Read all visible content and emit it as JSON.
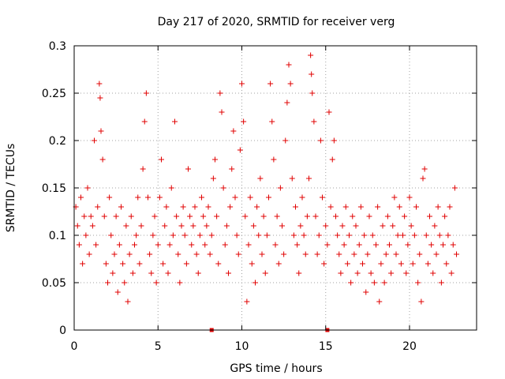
{
  "chart_data": {
    "type": "scatter",
    "title": "Day 217 of 2020, SRMTID for receiver verg",
    "xlabel": "GPS time / hours",
    "ylabel": "SRMTID / TECUs",
    "xlim": [
      0,
      24
    ],
    "ylim": [
      0,
      0.3
    ],
    "x_ticks": [
      0,
      5,
      10,
      15,
      20
    ],
    "x_tick_labels": [
      "0",
      "5",
      "10",
      "15",
      "20"
    ],
    "y_ticks": [
      0,
      0.05,
      0.1,
      0.15,
      0.2,
      0.25,
      0.3
    ],
    "y_tick_labels": [
      "0",
      "0.05",
      "0.1",
      "0.15",
      "0.2",
      "0.25",
      "0.3"
    ],
    "grid": true,
    "marker": "plus",
    "color": "#e00000",
    "outage_markers_x": [
      8.2,
      15.1
    ],
    "series": [
      {
        "name": "SRMTID",
        "points": [
          [
            0.1,
            0.13
          ],
          [
            0.2,
            0.11
          ],
          [
            0.3,
            0.09
          ],
          [
            0.4,
            0.14
          ],
          [
            0.5,
            0.07
          ],
          [
            0.6,
            0.12
          ],
          [
            0.7,
            0.1
          ],
          [
            0.8,
            0.15
          ],
          [
            0.9,
            0.08
          ],
          [
            1.0,
            0.12
          ],
          [
            1.1,
            0.11
          ],
          [
            1.2,
            0.2
          ],
          [
            1.3,
            0.09
          ],
          [
            1.4,
            0.13
          ],
          [
            1.5,
            0.26
          ],
          [
            1.55,
            0.245
          ],
          [
            1.6,
            0.21
          ],
          [
            1.7,
            0.18
          ],
          [
            1.8,
            0.12
          ],
          [
            1.9,
            0.07
          ],
          [
            2.0,
            0.05
          ],
          [
            2.1,
            0.14
          ],
          [
            2.2,
            0.1
          ],
          [
            2.3,
            0.06
          ],
          [
            2.4,
            0.08
          ],
          [
            2.5,
            0.12
          ],
          [
            2.6,
            0.04
          ],
          [
            2.7,
            0.09
          ],
          [
            2.8,
            0.13
          ],
          [
            2.9,
            0.07
          ],
          [
            3.0,
            0.05
          ],
          [
            3.1,
            0.11
          ],
          [
            3.2,
            0.03
          ],
          [
            3.3,
            0.08
          ],
          [
            3.4,
            0.12
          ],
          [
            3.5,
            0.06
          ],
          [
            3.6,
            0.09
          ],
          [
            3.7,
            0.1
          ],
          [
            3.8,
            0.14
          ],
          [
            3.9,
            0.07
          ],
          [
            4.0,
            0.11
          ],
          [
            4.1,
            0.17
          ],
          [
            4.2,
            0.22
          ],
          [
            4.3,
            0.25
          ],
          [
            4.4,
            0.14
          ],
          [
            4.5,
            0.08
          ],
          [
            4.6,
            0.06
          ],
          [
            4.7,
            0.1
          ],
          [
            4.8,
            0.12
          ],
          [
            4.9,
            0.05
          ],
          [
            5.0,
            0.09
          ],
          [
            5.1,
            0.14
          ],
          [
            5.2,
            0.18
          ],
          [
            5.3,
            0.07
          ],
          [
            5.4,
            0.11
          ],
          [
            5.5,
            0.13
          ],
          [
            5.6,
            0.06
          ],
          [
            5.7,
            0.09
          ],
          [
            5.8,
            0.15
          ],
          [
            5.9,
            0.1
          ],
          [
            6.0,
            0.22
          ],
          [
            6.1,
            0.12
          ],
          [
            6.2,
            0.08
          ],
          [
            6.3,
            0.05
          ],
          [
            6.4,
            0.11
          ],
          [
            6.5,
            0.13
          ],
          [
            6.6,
            0.1
          ],
          [
            6.7,
            0.07
          ],
          [
            6.8,
            0.17
          ],
          [
            6.9,
            0.12
          ],
          [
            7.0,
            0.09
          ],
          [
            7.1,
            0.11
          ],
          [
            7.2,
            0.13
          ],
          [
            7.3,
            0.08
          ],
          [
            7.4,
            0.06
          ],
          [
            7.5,
            0.1
          ],
          [
            7.6,
            0.14
          ],
          [
            7.7,
            0.12
          ],
          [
            7.8,
            0.09
          ],
          [
            7.9,
            0.11
          ],
          [
            8.0,
            0.13
          ],
          [
            8.1,
            0.08
          ],
          [
            8.2,
            0.1
          ],
          [
            8.3,
            0.16
          ],
          [
            8.4,
            0.18
          ],
          [
            8.5,
            0.12
          ],
          [
            8.6,
            0.07
          ],
          [
            8.7,
            0.25
          ],
          [
            8.8,
            0.23
          ],
          [
            8.9,
            0.15
          ],
          [
            9.0,
            0.09
          ],
          [
            9.1,
            0.11
          ],
          [
            9.2,
            0.06
          ],
          [
            9.3,
            0.13
          ],
          [
            9.4,
            0.17
          ],
          [
            9.5,
            0.21
          ],
          [
            9.6,
            0.14
          ],
          [
            9.7,
            0.1
          ],
          [
            9.8,
            0.08
          ],
          [
            9.9,
            0.19
          ],
          [
            10.0,
            0.26
          ],
          [
            10.1,
            0.22
          ],
          [
            10.2,
            0.12
          ],
          [
            10.3,
            0.03
          ],
          [
            10.4,
            0.09
          ],
          [
            10.5,
            0.14
          ],
          [
            10.6,
            0.07
          ],
          [
            10.7,
            0.11
          ],
          [
            10.8,
            0.05
          ],
          [
            10.9,
            0.13
          ],
          [
            11.0,
            0.1
          ],
          [
            11.1,
            0.16
          ],
          [
            11.2,
            0.08
          ],
          [
            11.3,
            0.12
          ],
          [
            11.4,
            0.06
          ],
          [
            11.5,
            0.1
          ],
          [
            11.6,
            0.14
          ],
          [
            11.7,
            0.26
          ],
          [
            11.8,
            0.22
          ],
          [
            11.9,
            0.18
          ],
          [
            12.0,
            0.09
          ],
          [
            12.1,
            0.12
          ],
          [
            12.2,
            0.07
          ],
          [
            12.3,
            0.15
          ],
          [
            12.4,
            0.11
          ],
          [
            12.5,
            0.08
          ],
          [
            12.6,
            0.2
          ],
          [
            12.7,
            0.24
          ],
          [
            12.8,
            0.28
          ],
          [
            12.9,
            0.26
          ],
          [
            13.0,
            0.16
          ],
          [
            13.1,
            0.1
          ],
          [
            13.2,
            0.13
          ],
          [
            13.3,
            0.09
          ],
          [
            13.4,
            0.06
          ],
          [
            13.5,
            0.11
          ],
          [
            13.6,
            0.14
          ],
          [
            13.7,
            0.1
          ],
          [
            13.8,
            0.08
          ],
          [
            13.9,
            0.12
          ],
          [
            14.0,
            0.16
          ],
          [
            14.1,
            0.29
          ],
          [
            14.15,
            0.27
          ],
          [
            14.2,
            0.25
          ],
          [
            14.3,
            0.22
          ],
          [
            14.4,
            0.12
          ],
          [
            14.5,
            0.08
          ],
          [
            14.6,
            0.1
          ],
          [
            14.7,
            0.2
          ],
          [
            14.8,
            0.14
          ],
          [
            14.9,
            0.07
          ],
          [
            15.0,
            0.11
          ],
          [
            15.1,
            0.09
          ],
          [
            15.2,
            0.23
          ],
          [
            15.3,
            0.13
          ],
          [
            15.4,
            0.18
          ],
          [
            15.5,
            0.2
          ],
          [
            15.6,
            0.12
          ],
          [
            15.7,
            0.1
          ],
          [
            15.8,
            0.08
          ],
          [
            15.9,
            0.06
          ],
          [
            16.0,
            0.11
          ],
          [
            16.1,
            0.09
          ],
          [
            16.2,
            0.13
          ],
          [
            16.3,
            0.07
          ],
          [
            16.4,
            0.1
          ],
          [
            16.5,
            0.05
          ],
          [
            16.6,
            0.12
          ],
          [
            16.7,
            0.08
          ],
          [
            16.8,
            0.11
          ],
          [
            16.9,
            0.06
          ],
          [
            17.0,
            0.09
          ],
          [
            17.1,
            0.13
          ],
          [
            17.2,
            0.07
          ],
          [
            17.3,
            0.1
          ],
          [
            17.4,
            0.04
          ],
          [
            17.5,
            0.08
          ],
          [
            17.6,
            0.12
          ],
          [
            17.7,
            0.06
          ],
          [
            17.8,
            0.1
          ],
          [
            17.9,
            0.05
          ],
          [
            18.0,
            0.09
          ],
          [
            18.1,
            0.13
          ],
          [
            18.2,
            0.03
          ],
          [
            18.3,
            0.07
          ],
          [
            18.4,
            0.11
          ],
          [
            18.5,
            0.05
          ],
          [
            18.6,
            0.08
          ],
          [
            18.7,
            0.12
          ],
          [
            18.8,
            0.09
          ],
          [
            18.9,
            0.06
          ],
          [
            19.0,
            0.11
          ],
          [
            19.1,
            0.14
          ],
          [
            19.2,
            0.08
          ],
          [
            19.3,
            0.1
          ],
          [
            19.4,
            0.13
          ],
          [
            19.5,
            0.07
          ],
          [
            19.6,
            0.1
          ],
          [
            19.7,
            0.12
          ],
          [
            19.8,
            0.06
          ],
          [
            19.9,
            0.09
          ],
          [
            20.0,
            0.14
          ],
          [
            20.1,
            0.11
          ],
          [
            20.2,
            0.07
          ],
          [
            20.3,
            0.1
          ],
          [
            20.4,
            0.13
          ],
          [
            20.5,
            0.05
          ],
          [
            20.6,
            0.08
          ],
          [
            20.7,
            0.03
          ],
          [
            20.8,
            0.16
          ],
          [
            20.9,
            0.17
          ],
          [
            21.0,
            0.1
          ],
          [
            21.1,
            0.07
          ],
          [
            21.2,
            0.12
          ],
          [
            21.3,
            0.09
          ],
          [
            21.4,
            0.06
          ],
          [
            21.5,
            0.11
          ],
          [
            21.6,
            0.08
          ],
          [
            21.7,
            0.13
          ],
          [
            21.8,
            0.1
          ],
          [
            21.9,
            0.05
          ],
          [
            22.0,
            0.09
          ],
          [
            22.1,
            0.12
          ],
          [
            22.2,
            0.07
          ],
          [
            22.3,
            0.1
          ],
          [
            22.4,
            0.13
          ],
          [
            22.5,
            0.06
          ],
          [
            22.6,
            0.09
          ],
          [
            22.7,
            0.15
          ],
          [
            22.8,
            0.08
          ]
        ]
      }
    ]
  }
}
